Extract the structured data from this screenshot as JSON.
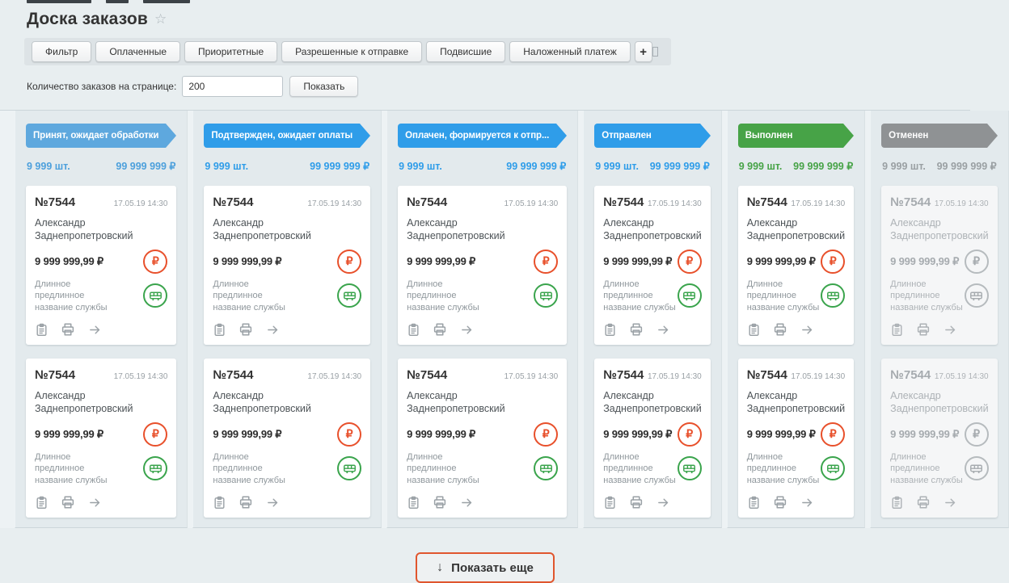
{
  "header": {
    "title": "Доска заказов"
  },
  "icons": {
    "star": "☆",
    "plus": "+",
    "ruble": "₽",
    "down_arrow": "↓"
  },
  "colors": {
    "blue_light": "#5ea8de",
    "blue": "#2f9de9",
    "green": "#47a347",
    "gray": "#8f9294",
    "ruble_accent": "#e8502b",
    "truck_accent": "#3aa44c",
    "show_more_border": "#e0562e"
  },
  "filters": {
    "buttons": [
      {
        "id": "filter",
        "label": "Фильтр"
      },
      {
        "id": "paid",
        "label": "Оплаченные"
      },
      {
        "id": "priority",
        "label": "Приоритетные"
      },
      {
        "id": "allowed-to-ship",
        "label": "Разрешенные к отправке"
      },
      {
        "id": "stuck",
        "label": "Подвисшие"
      },
      {
        "id": "cash-on-delivery",
        "label": "Наложенный платеж"
      }
    ],
    "add_label": "+"
  },
  "per_page": {
    "label": "Количество заказов на странице:",
    "value": "200",
    "show_label": "Показать"
  },
  "board": {
    "rows_per_column": 2,
    "columns": [
      {
        "id": "accepted",
        "label": "Принят, ожидает обработки",
        "color": "#5ea8de",
        "counts_color": "#4da0dc",
        "count": "9 999 шт.",
        "total": "99 999 999 ₽",
        "muted": false
      },
      {
        "id": "confirmed",
        "label": "Подтвержден, ожидает оплаты",
        "color": "#2f9de9",
        "counts_color": "#2f9de9",
        "count": "9 999 шт.",
        "total": "99 999 999 ₽",
        "muted": false
      },
      {
        "id": "paid",
        "label": "Оплачен, формируется к отпр...",
        "color": "#2f9de9",
        "counts_color": "#2f9de9",
        "count": "9 999 шт.",
        "total": "99 999 999 ₽",
        "muted": false
      },
      {
        "id": "shipped",
        "label": "Отправлен",
        "color": "#2f9de9",
        "counts_color": "#2f9de9",
        "count": "9 999 шт.",
        "total": "99 999 999 ₽",
        "muted": false
      },
      {
        "id": "done",
        "label": "Выполнен",
        "color": "#47a347",
        "counts_color": "#47a347",
        "count": "9 999 шт.",
        "total": "99 999 999 ₽",
        "muted": false
      },
      {
        "id": "cancelled",
        "label": "Отменен",
        "color": "#8f9294",
        "counts_color": "#9aa0a3",
        "count": "9 999 шт.",
        "total": "99 999 999 ₽",
        "muted": true
      }
    ],
    "card": {
      "number": "№7544",
      "datetime": "17.05.19 14:30",
      "customer": "Александр Заднепропетровский",
      "price": "9 999 999,99 ₽",
      "service": "Длинное предлинное название службы"
    }
  },
  "footer": {
    "show_more": "Показать еще"
  }
}
